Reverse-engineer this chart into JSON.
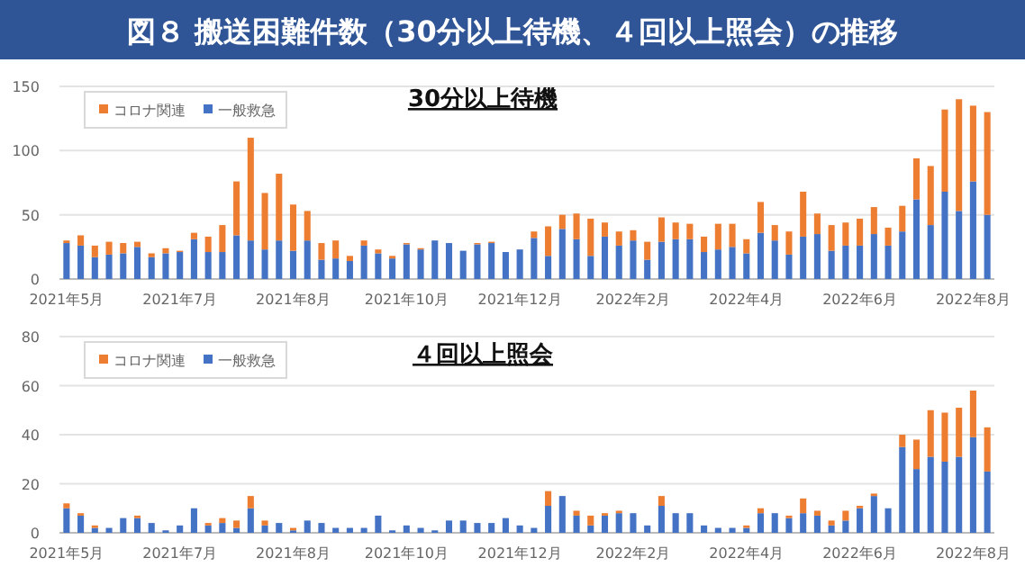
{
  "chart_data": [
    {
      "type": "bar",
      "title": "図８ 搬送困難件数（30分以上待機、４回以上照会）の推移",
      "subtitle": "30分以上待機",
      "stacked": true,
      "legend": "top left",
      "grid": "y",
      "ylim": [
        0,
        150
      ],
      "yticks": [
        0,
        50,
        100,
        150
      ],
      "categories": [
        "2021年5月",
        null,
        null,
        null,
        null,
        null,
        null,
        null,
        "2021年7月",
        null,
        null,
        null,
        null,
        null,
        null,
        null,
        "2021年8月",
        null,
        null,
        null,
        null,
        null,
        null,
        null,
        "2021年10月",
        null,
        null,
        null,
        null,
        null,
        null,
        null,
        "2021年12月",
        null,
        null,
        null,
        null,
        null,
        null,
        null,
        "2022年2月",
        null,
        null,
        null,
        null,
        null,
        null,
        null,
        "2022年4月",
        null,
        null,
        null,
        null,
        null,
        null,
        null,
        "2022年6月",
        null,
        null,
        null,
        null,
        null,
        null,
        null,
        "2022年8月",
        null
      ],
      "series": [
        {
          "name": "一般救急",
          "color": "#4472c4",
          "values": [
            28,
            26,
            17,
            19,
            20,
            25,
            17,
            20,
            21,
            31,
            21,
            21,
            34,
            30,
            23,
            30,
            22,
            30,
            15,
            16,
            14,
            26,
            20,
            16,
            27,
            23,
            30,
            28,
            22,
            27,
            28,
            21,
            23,
            32,
            18,
            39,
            31,
            18,
            33,
            26,
            30,
            15,
            29,
            31,
            31,
            21,
            23,
            25,
            20,
            36,
            30,
            19,
            33,
            35,
            22,
            26,
            26,
            35,
            26,
            37,
            62,
            42,
            68,
            53,
            76,
            50
          ]
        },
        {
          "name": "コロナ関連",
          "color": "#ed7d31",
          "values": [
            2,
            8,
            9,
            10,
            8,
            4,
            3,
            4,
            1,
            5,
            12,
            21,
            42,
            80,
            44,
            52,
            36,
            23,
            13,
            14,
            4,
            4,
            3,
            2,
            1,
            1,
            0,
            0,
            0,
            1,
            1,
            0,
            0,
            5,
            23,
            11,
            20,
            29,
            11,
            11,
            8,
            14,
            19,
            13,
            12,
            12,
            20,
            18,
            11,
            24,
            12,
            18,
            35,
            16,
            20,
            18,
            21,
            21,
            14,
            20,
            32,
            46,
            64,
            87,
            59,
            80
          ]
        }
      ]
    },
    {
      "type": "bar",
      "title": "４回以上照会",
      "stacked": true,
      "legend": "top left",
      "grid": "y",
      "ylim": [
        0,
        80
      ],
      "yticks": [
        0,
        20,
        40,
        60,
        80
      ],
      "categories": [
        "2021年5月",
        null,
        null,
        null,
        null,
        null,
        null,
        null,
        "2021年7月",
        null,
        null,
        null,
        null,
        null,
        null,
        null,
        "2021年8月",
        null,
        null,
        null,
        null,
        null,
        null,
        null,
        "2021年10月",
        null,
        null,
        null,
        null,
        null,
        null,
        null,
        "2021年12月",
        null,
        null,
        null,
        null,
        null,
        null,
        null,
        "2022年2月",
        null,
        null,
        null,
        null,
        null,
        null,
        null,
        "2022年4月",
        null,
        null,
        null,
        null,
        null,
        null,
        null,
        "2022年6月",
        null,
        null,
        null,
        null,
        null,
        null,
        null,
        "2022年8月",
        null
      ],
      "series": [
        {
          "name": "一般救急",
          "color": "#4472c4",
          "values": [
            10,
            7,
            2,
            2,
            6,
            6,
            4,
            1,
            3,
            10,
            3,
            4,
            2,
            10,
            3,
            4,
            1,
            5,
            4,
            2,
            2,
            2,
            7,
            1,
            3,
            2,
            1,
            5,
            5,
            4,
            4,
            6,
            3,
            2,
            11,
            15,
            7,
            3,
            7,
            8,
            8,
            3,
            11,
            8,
            8,
            3,
            2,
            2,
            2,
            8,
            8,
            6,
            8,
            7,
            3,
            5,
            10,
            15,
            10,
            35,
            26,
            31,
            29,
            31,
            39,
            25
          ]
        },
        {
          "name": "コロナ関連",
          "color": "#ed7d31",
          "values": [
            2,
            1,
            1,
            0,
            0,
            1,
            0,
            0,
            0,
            0,
            1,
            2,
            3,
            5,
            2,
            0,
            1,
            0,
            0,
            0,
            0,
            0,
            0,
            0,
            0,
            0,
            0,
            0,
            0,
            0,
            0,
            0,
            0,
            0,
            6,
            0,
            2,
            4,
            1,
            1,
            0,
            0,
            4,
            0,
            0,
            0,
            0,
            0,
            1,
            2,
            0,
            1,
            6,
            2,
            2,
            4,
            1,
            1,
            0,
            5,
            12,
            19,
            20,
            20,
            19,
            18
          ]
        }
      ]
    }
  ]
}
